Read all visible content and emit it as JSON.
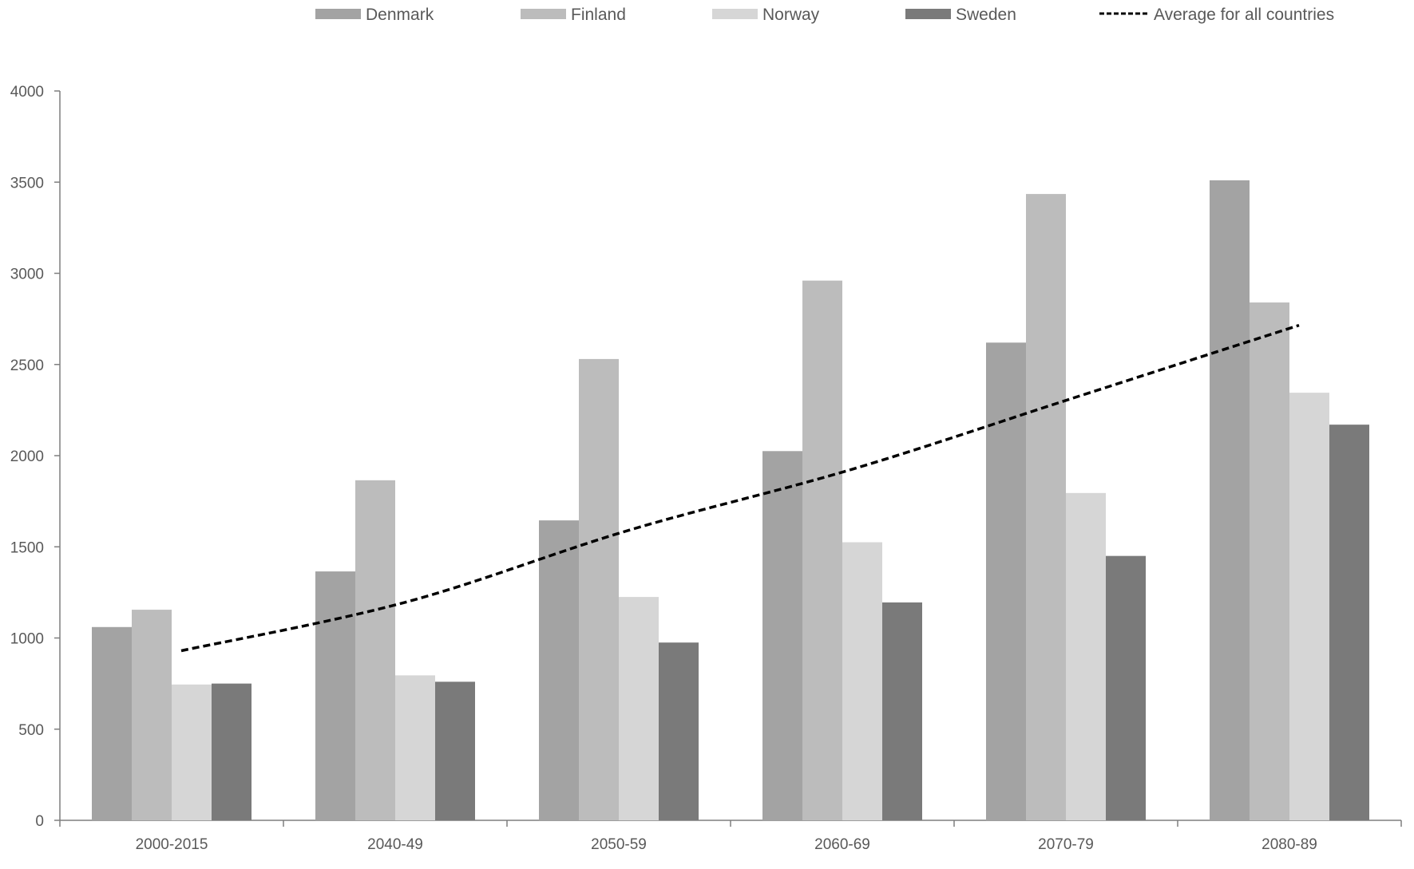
{
  "chart_data": {
    "type": "bar",
    "title": "",
    "xlabel": "",
    "ylabel": "",
    "categories": [
      "2000-2015",
      "2040-49",
      "2050-59",
      "2060-69",
      "2070-79",
      "2080-89"
    ],
    "ylim": [
      0,
      4000
    ],
    "yticks": [
      0,
      500,
      1000,
      1500,
      2000,
      2500,
      3000,
      3500,
      4000
    ],
    "grid": false,
    "legend_position": "top",
    "series": [
      {
        "name": "Denmark",
        "color": "#a3a3a3",
        "values": [
          1060,
          1365,
          1645,
          2025,
          2620,
          3510
        ]
      },
      {
        "name": "Finland",
        "color": "#bcbcbc",
        "values": [
          1155,
          1865,
          2530,
          2960,
          3435,
          2840
        ]
      },
      {
        "name": "Norway",
        "color": "#d6d6d6",
        "values": [
          745,
          795,
          1225,
          1525,
          1795,
          2345
        ]
      },
      {
        "name": "Sweden",
        "color": "#7a7a7a",
        "values": [
          750,
          760,
          975,
          1195,
          1450,
          2170
        ]
      }
    ],
    "line": {
      "name": "Average for all countries",
      "style": "dashed",
      "color": "#000000",
      "values": [
        930,
        1195,
        1590,
        1925,
        2320,
        2715
      ]
    }
  }
}
